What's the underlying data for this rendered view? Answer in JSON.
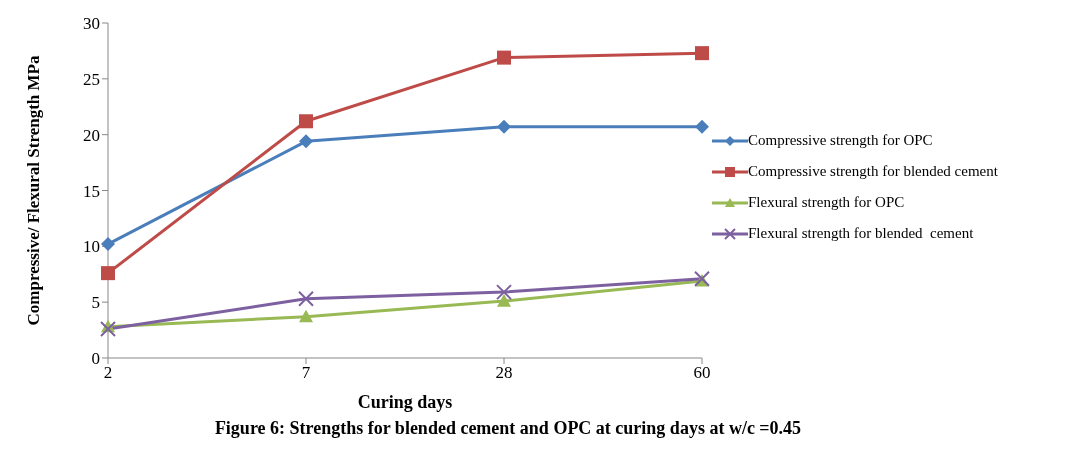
{
  "chart_data": {
    "type": "line",
    "xlabel": "Curing days",
    "ylabel": "Compressive/ Flexural Strength MPa",
    "categories": [
      "2",
      "7",
      "28",
      "60"
    ],
    "series": [
      {
        "name": "Compressive strength for OPC",
        "color": "#4a7ebb",
        "marker": "diamond",
        "values": [
          10.2,
          19.4,
          20.7,
          20.7
        ]
      },
      {
        "name": "Compressive strength for blended cement",
        "color": "#be4b48",
        "marker": "square",
        "values": [
          7.6,
          21.2,
          26.9,
          27.3
        ]
      },
      {
        "name": "Flexural strength for OPC",
        "color": "#98b954",
        "marker": "triangle",
        "values": [
          2.8,
          3.7,
          5.1,
          6.9
        ]
      },
      {
        "name": "Flexural strength for blended  cement",
        "color": "#7d60a0",
        "marker": "cross",
        "values": [
          2.6,
          5.3,
          5.9,
          7.1
        ]
      }
    ],
    "ylim": [
      0,
      30
    ],
    "yticks": [
      0,
      5,
      10,
      15,
      20,
      25,
      30
    ],
    "grid": false,
    "legend": "right",
    "line_style": "solid",
    "annotations": [
      "Figure 6: Strengths for blended cement and OPC at curing days at w/c =0.45"
    ]
  }
}
